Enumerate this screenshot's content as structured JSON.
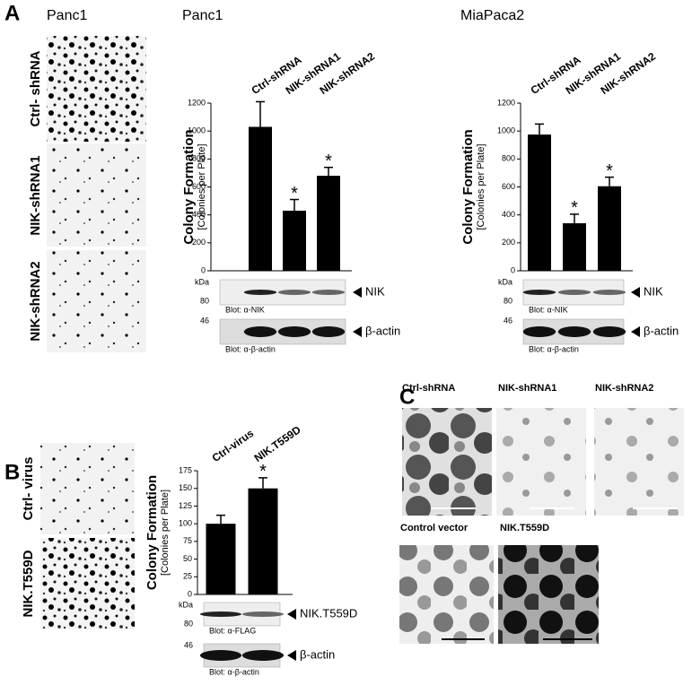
{
  "chart_data": [
    {
      "type": "bar",
      "title": "Panc1",
      "categories": [
        "Ctrl-shRNA",
        "NIK-shRNA1",
        "NIK-shRNA2"
      ],
      "values": [
        1030,
        430,
        680
      ],
      "errors": [
        180,
        80,
        60
      ],
      "significance": [
        null,
        "*",
        "*"
      ],
      "color": "#000000",
      "ylim": [
        0,
        1200
      ],
      "yticks": [
        0,
        200,
        400,
        600,
        800,
        1000,
        1200
      ],
      "ylabel": "Colony Formation",
      "ylabel_sub": "[Colonies per Plate]",
      "blots": [
        {
          "markers": [
            "kDa",
            "80"
          ],
          "antibody": "Blot: α-NIK",
          "target": "NIK"
        },
        {
          "markers": [
            "46"
          ],
          "antibody": "Blot: α-β-actin",
          "target": "β-actin"
        }
      ]
    },
    {
      "type": "bar",
      "title": "MiaPaca2",
      "categories": [
        "Ctrl-shRNA",
        "NIK-shRNA1",
        "NIK-shRNA2"
      ],
      "values": [
        975,
        340,
        605
      ],
      "errors": [
        75,
        65,
        65
      ],
      "significance": [
        null,
        "*",
        "*"
      ],
      "color": "#000000",
      "ylim": [
        0,
        1200
      ],
      "yticks": [
        0,
        200,
        400,
        600,
        800,
        1000,
        1200
      ],
      "ylabel": "Colony Formation",
      "ylabel_sub": "[Colonies per Plate]",
      "blots": [
        {
          "markers": [
            "kDa",
            "80"
          ],
          "antibody": "Blot: α-NIK",
          "target": "NIK"
        },
        {
          "markers": [
            "46"
          ],
          "antibody": "Blot: α-β-actin",
          "target": "β-actin"
        }
      ]
    },
    {
      "type": "bar",
      "categories": [
        "Ctrl-virus",
        "NIK.T559D"
      ],
      "values": [
        100,
        150
      ],
      "errors": [
        12,
        15
      ],
      "significance": [
        null,
        "*"
      ],
      "color": "#000000",
      "ylim": [
        0,
        175
      ],
      "yticks": [
        0,
        25,
        50,
        75,
        100,
        125,
        150,
        175
      ],
      "ylabel": "Colony Formation",
      "ylabel_sub": "[Colonies per Plate]",
      "blots": [
        {
          "markers": [
            "kDa",
            "80"
          ],
          "antibody": "Blot: α-FLAG",
          "target": "NIK.T559D"
        },
        {
          "markers": [
            "46"
          ],
          "antibody": "Blot: α-β-actin",
          "target": "β-actin"
        }
      ]
    }
  ],
  "panels": {
    "A": {
      "letter": "A",
      "image_title": "Panc1",
      "image_labels": [
        "Ctrl- shRNA",
        "NIK-shRNA1",
        "NIK-shRNA2"
      ]
    },
    "B": {
      "letter": "B",
      "image_labels": [
        "Ctrl- virus",
        "NIK.T559D"
      ]
    },
    "C": {
      "letter": "C",
      "image_labels": [
        "Ctrl-shRNA",
        "NIK-shRNA1",
        "NIK-shRNA2",
        "Control vector",
        "NIK.T559D"
      ]
    }
  }
}
